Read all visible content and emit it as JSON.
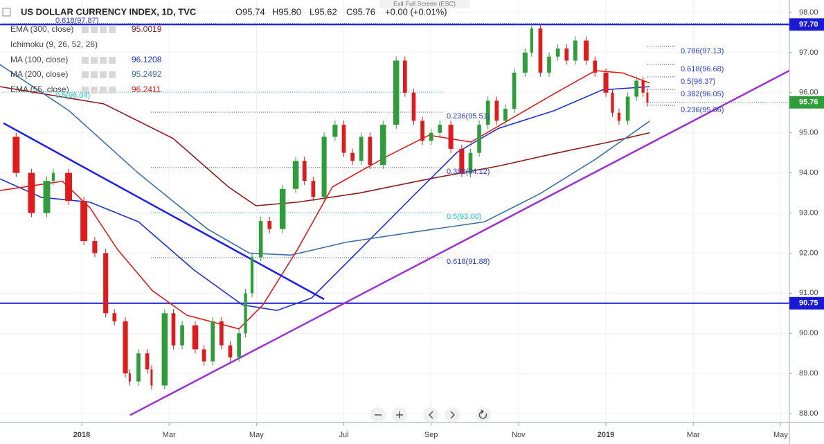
{
  "header": {
    "symbol": "US DOLLAR CURRENCY INDEX, 1D, TVC",
    "ohlc": [
      "O95.74",
      "H95.80",
      "L95.62",
      "C95.76",
      "+0.00 (+0.01%)"
    ]
  },
  "exit_fullscreen": "Exit Full Screen (ESC)",
  "ichimoku": "Ichimoku (9, 26, 52, 26)",
  "chart_data": {
    "type": "candlestick",
    "xlim": [
      -1.87,
      16.2
    ],
    "xticks": [
      {
        "value": 0,
        "label": "2018"
      },
      {
        "value": 2,
        "label": "Mar"
      },
      {
        "value": 4,
        "label": "May"
      },
      {
        "value": 6,
        "label": "Jul"
      },
      {
        "value": 8,
        "label": "Sep"
      },
      {
        "value": 10,
        "label": "Nov"
      },
      {
        "value": 12,
        "label": "2019"
      },
      {
        "value": 14,
        "label": "Mar"
      },
      {
        "value": 16,
        "label": "May"
      }
    ],
    "ylim": [
      88,
      98
    ],
    "yticks": [
      {
        "value": 88,
        "label": "88.00"
      },
      {
        "value": 89,
        "label": "89.00"
      },
      {
        "value": 90,
        "label": "90.00"
      },
      {
        "value": 91,
        "label": "91.00"
      },
      {
        "value": 92,
        "label": "92.00"
      },
      {
        "value": 93,
        "label": "93.00"
      },
      {
        "value": 94,
        "label": "94.00"
      },
      {
        "value": 95,
        "label": "95.00"
      },
      {
        "value": 96,
        "label": "96.00"
      },
      {
        "value": 97,
        "label": "97.00"
      },
      {
        "value": 98,
        "label": "98.00"
      }
    ],
    "grid": true,
    "price": {
      "up_color": "#2e9e3a",
      "down_color": "#e01b1b",
      "x": [
        -1.85,
        -1.5,
        -1.15,
        -0.8,
        -0.65,
        -0.3,
        0.05,
        0.3,
        0.55,
        0.75,
        1.0,
        1.1,
        1.3,
        1.5,
        1.6,
        1.9,
        2.1,
        2.3,
        2.6,
        2.8,
        3.0,
        3.2,
        3.4,
        3.6,
        3.75,
        3.9,
        4.1,
        4.3,
        4.6,
        4.9,
        5.1,
        5.3,
        5.55,
        5.8,
        6.0,
        6.2,
        6.4,
        6.6,
        6.9,
        7.2,
        7.4,
        7.6,
        7.8,
        8.0,
        8.2,
        8.45,
        8.7,
        8.9,
        9.1,
        9.3,
        9.5,
        9.7,
        9.9,
        10.15,
        10.3,
        10.5,
        10.7,
        10.9,
        11.1,
        11.3,
        11.55,
        11.75,
        12.0,
        12.15,
        12.3,
        12.5,
        12.7,
        12.85,
        12.95
      ],
      "values": [
        94.9,
        94.0,
        93.0,
        93.8,
        94.0,
        93.3,
        92.3,
        92.0,
        90.5,
        90.3,
        89.0,
        88.8,
        89.5,
        89.1,
        88.7,
        90.5,
        89.7,
        90.2,
        89.6,
        89.3,
        90.3,
        89.7,
        89.4,
        90.0,
        91.0,
        91.9,
        92.8,
        92.6,
        93.6,
        94.3,
        93.8,
        93.4,
        94.9,
        95.2,
        94.5,
        94.3,
        94.9,
        94.2,
        95.2,
        96.8,
        96.0,
        95.3,
        94.8,
        95.0,
        95.2,
        94.6,
        94.0,
        94.5,
        95.2,
        95.8,
        95.3,
        95.6,
        96.5,
        97.0,
        97.6,
        96.5,
        96.9,
        97.1,
        96.8,
        97.3,
        96.8,
        96.5,
        96.0,
        95.5,
        95.3,
        95.9,
        96.3,
        96.0,
        95.76
      ]
    },
    "series": [
      {
        "name": "EMA (300, close)",
        "value": "95.0019",
        "color": "#8b1a1a",
        "x": [
          -1.87,
          0.51,
          2.09,
          3.36,
          3.99,
          4.94,
          6.37,
          7.95,
          9.54,
          10.81,
          12.08,
          13.0
        ],
        "values": [
          96.15,
          95.72,
          94.86,
          93.65,
          93.18,
          93.27,
          93.5,
          93.85,
          94.17,
          94.48,
          94.77,
          95.0
        ]
      },
      {
        "name": "MA (100, close)",
        "value": "96.1208",
        "color": "#1a2fd6",
        "x": [
          -1.87,
          -0.92,
          0.19,
          1.3,
          2.57,
          3.68,
          4.47,
          5.26,
          6.37,
          7.64,
          8.59,
          9.54,
          10.81,
          11.92,
          13.0
        ],
        "values": [
          93.85,
          93.39,
          93.27,
          92.78,
          91.58,
          90.71,
          90.57,
          90.88,
          92.09,
          93.48,
          94.51,
          95.11,
          95.55,
          96.07,
          96.15
        ]
      },
      {
        "name": "MA (200, close)",
        "value": "95.2492",
        "color": "#3c6ea8",
        "x": [
          -1.87,
          -0.29,
          1.3,
          2.88,
          3.84,
          4.79,
          6.05,
          7.64,
          9.22,
          10.49,
          11.76,
          13.0
        ],
        "values": [
          96.7,
          95.55,
          93.99,
          92.6,
          92.0,
          91.95,
          92.27,
          92.53,
          92.78,
          93.48,
          94.34,
          95.29
        ]
      },
      {
        "name": "EMA (55, close)",
        "value": "96.2411",
        "color": "#e01b1b",
        "x": [
          -1.87,
          -0.44,
          0.19,
          0.82,
          1.62,
          2.41,
          3.6,
          4.15,
          4.94,
          5.74,
          7.0,
          7.95,
          8.91,
          9.86,
          10.81,
          11.76,
          12.39,
          13.0
        ],
        "values": [
          93.56,
          93.79,
          93.13,
          92.09,
          91.06,
          90.45,
          90.11,
          90.71,
          92.09,
          93.65,
          94.42,
          94.94,
          94.77,
          95.37,
          95.97,
          96.55,
          96.49,
          96.24
        ]
      }
    ],
    "trendlines": [
      {
        "color": "#9b30d9",
        "x": [
          1.11,
          16.2
        ],
        "values": [
          87.96,
          96.55
        ]
      },
      {
        "color": "#1a1aff",
        "x": [
          -1.79,
          5.55
        ],
        "values": [
          95.24,
          90.85
        ]
      }
    ],
    "levels": [
      {
        "value": 97.7,
        "label": "97.70",
        "color": "#1a1ad6"
      },
      {
        "value": 90.75,
        "label": "90.75",
        "color": "#1a1ad6"
      }
    ],
    "last_price": {
      "value": 95.76,
      "label": "95.76",
      "color": "#2e9e3a"
    },
    "annotations": [
      "0.618(97.87)",
      "0.5(96.04)",
      "0.236(95.51)",
      "0.382(94.12)",
      "0.5(93.00)",
      "0.618(91.88)",
      "0.786(97.13)",
      "0.618(96.68)",
      "0.5(96.37)",
      "0.382(96.05)",
      "0.236(95.66)"
    ]
  }
}
